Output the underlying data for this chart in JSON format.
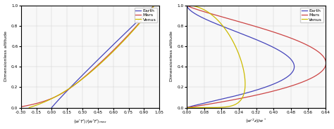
{
  "left_xlabel": "<w'T'>/<w'T'>$_{max}$",
  "right_xlabel": "<w'^{2} z>/w^{*}",
  "ylabel": "Dimensionless altitude",
  "left_xlim": [
    -0.3,
    1.05
  ],
  "right_xlim": [
    0.0,
    0.64
  ],
  "left_xticks": [
    -0.3,
    -0.15,
    0.0,
    0.15,
    0.3,
    0.45,
    0.6,
    0.75,
    0.9,
    1.05
  ],
  "right_xticks": [
    0.0,
    0.08,
    0.16,
    0.24,
    0.32,
    0.4,
    0.48,
    0.56,
    0.64
  ],
  "ylim": [
    0.0,
    1.0
  ],
  "yticks": [
    0.0,
    0.2,
    0.4,
    0.6,
    0.8,
    1.0
  ],
  "colors": {
    "Earth": "#4444bb",
    "Mars": "#cc4444",
    "Venus": "#ccbb00"
  },
  "legend_labels": [
    "Earth",
    "Mars",
    "Venus"
  ],
  "bg_color": "#f8f8f8",
  "grid_color": "#cccccc"
}
